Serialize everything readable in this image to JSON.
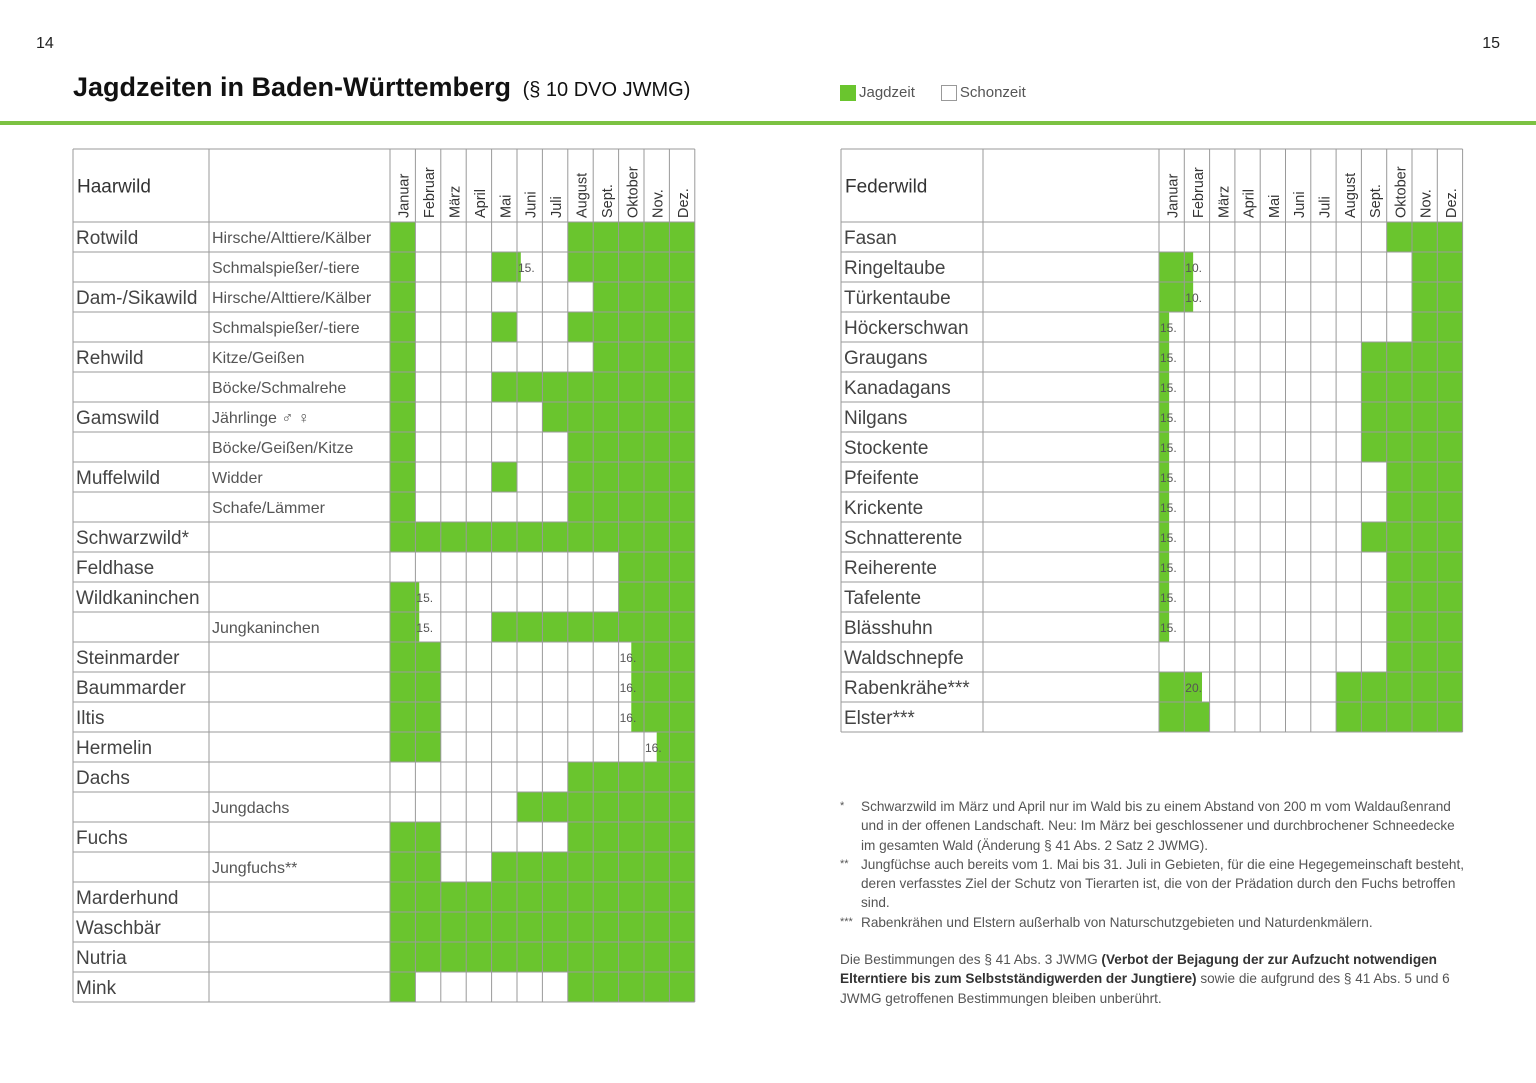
{
  "page": {
    "left_number": "14",
    "right_number": "15",
    "title": "Jagdzeiten in Baden-Württemberg",
    "title_sub": "(§ 10 DVO JWMG)",
    "legend": {
      "jagdzeit": "Jagdzeit",
      "schonzeit": "Schonzeit"
    }
  },
  "colors": {
    "green": "#6ac52e",
    "rule": "#7cc242",
    "grid": "#9a9a9a"
  },
  "months": [
    "Januar",
    "Februar",
    "März",
    "April",
    "Mai",
    "Juni",
    "Juli",
    "August",
    "Sept.",
    "Oktober",
    "Nov.",
    "Dez."
  ],
  "haarwild": {
    "header": "Haarwild",
    "rows": [
      {
        "species": "Rotwild",
        "sub": "Hirsche/Alttiere/Kälber",
        "segs": [
          [
            0,
            1
          ],
          [
            7,
            12
          ]
        ],
        "marks": []
      },
      {
        "species": "",
        "sub": "Schmalspießer/-tiere",
        "segs": [
          [
            0,
            1
          ],
          [
            4,
            5.15
          ],
          [
            7,
            12
          ]
        ],
        "marks": [
          {
            "m": 5,
            "t": "15."
          }
        ]
      },
      {
        "species": "Dam-/Sikawild",
        "sub": "Hirsche/Alttiere/Kälber",
        "segs": [
          [
            0,
            1
          ],
          [
            8,
            12
          ]
        ],
        "marks": []
      },
      {
        "species": "",
        "sub": "Schmalspießer/-tiere",
        "segs": [
          [
            0,
            1
          ],
          [
            4,
            5
          ],
          [
            7,
            12
          ]
        ],
        "marks": []
      },
      {
        "species": "Rehwild",
        "sub": "Kitze/Geißen",
        "segs": [
          [
            0,
            1
          ],
          [
            8,
            12
          ]
        ],
        "marks": []
      },
      {
        "species": "",
        "sub": "Böcke/Schmalrehe",
        "segs": [
          [
            0,
            1
          ],
          [
            4,
            12
          ]
        ],
        "marks": []
      },
      {
        "species": "Gamswild",
        "sub": "Jährlinge ♂ ♀",
        "segs": [
          [
            0,
            1
          ],
          [
            6,
            12
          ]
        ],
        "marks": []
      },
      {
        "species": "",
        "sub": "Böcke/Geißen/Kitze",
        "segs": [
          [
            0,
            1
          ],
          [
            7,
            12
          ]
        ],
        "marks": []
      },
      {
        "species": "Muffelwild",
        "sub": "Widder",
        "segs": [
          [
            0,
            1
          ],
          [
            4,
            5
          ],
          [
            7,
            12
          ]
        ],
        "marks": []
      },
      {
        "species": "",
        "sub": "Schafe/Lämmer",
        "segs": [
          [
            0,
            1
          ],
          [
            7,
            12
          ]
        ],
        "marks": []
      },
      {
        "species": "Schwarzwild*",
        "sub": "",
        "segs": [
          [
            0,
            12
          ]
        ],
        "marks": []
      },
      {
        "species": "Feldhase",
        "sub": "",
        "segs": [
          [
            9,
            12
          ]
        ],
        "marks": []
      },
      {
        "species": "Wildkaninchen",
        "sub": "",
        "segs": [
          [
            0,
            1.15
          ],
          [
            9,
            12
          ]
        ],
        "marks": [
          {
            "m": 1,
            "t": "15."
          }
        ]
      },
      {
        "species": "",
        "sub": "Jungkaninchen",
        "segs": [
          [
            0,
            1.15
          ],
          [
            4,
            12
          ]
        ],
        "marks": [
          {
            "m": 1,
            "t": "15."
          }
        ]
      },
      {
        "species": "Steinmarder",
        "sub": "",
        "segs": [
          [
            0,
            2
          ],
          [
            9.5,
            12
          ]
        ],
        "marks": [
          {
            "m": 9,
            "t": "16."
          }
        ]
      },
      {
        "species": "Baummarder",
        "sub": "",
        "segs": [
          [
            0,
            2
          ],
          [
            9.5,
            12
          ]
        ],
        "marks": [
          {
            "m": 9,
            "t": "16."
          }
        ]
      },
      {
        "species": "Iltis",
        "sub": "",
        "segs": [
          [
            0,
            2
          ],
          [
            9.5,
            12
          ]
        ],
        "marks": [
          {
            "m": 9,
            "t": "16."
          }
        ]
      },
      {
        "species": "Hermelin",
        "sub": "",
        "segs": [
          [
            0,
            2
          ],
          [
            10.5,
            12
          ]
        ],
        "marks": [
          {
            "m": 10,
            "t": "16."
          }
        ]
      },
      {
        "species": "Dachs",
        "sub": "",
        "segs": [
          [
            7,
            12
          ]
        ],
        "marks": []
      },
      {
        "species": "",
        "sub": "Jungdachs",
        "segs": [
          [
            5,
            12
          ]
        ],
        "marks": []
      },
      {
        "species": "Fuchs",
        "sub": "",
        "segs": [
          [
            0,
            2
          ],
          [
            7,
            12
          ]
        ],
        "marks": []
      },
      {
        "species": "",
        "sub": "Jungfuchs**",
        "segs": [
          [
            0,
            2
          ],
          [
            4,
            12
          ]
        ],
        "marks": []
      },
      {
        "species": "Marderhund",
        "sub": "",
        "segs": [
          [
            0,
            12
          ]
        ],
        "marks": []
      },
      {
        "species": "Waschbär",
        "sub": "",
        "segs": [
          [
            0,
            12
          ]
        ],
        "marks": []
      },
      {
        "species": "Nutria",
        "sub": "",
        "segs": [
          [
            0,
            12
          ]
        ],
        "marks": []
      },
      {
        "species": "Mink",
        "sub": "",
        "segs": [
          [
            0,
            1
          ],
          [
            7,
            12
          ]
        ],
        "marks": []
      }
    ]
  },
  "federwild": {
    "header": "Federwild",
    "rows": [
      {
        "species": "Fasan",
        "segs": [
          [
            9,
            12
          ]
        ],
        "marks": []
      },
      {
        "species": "Ringeltaube",
        "segs": [
          [
            0,
            1.35
          ],
          [
            10,
            12
          ]
        ],
        "marks": [
          {
            "m": 1,
            "t": "10."
          }
        ]
      },
      {
        "species": "Türkentaube",
        "segs": [
          [
            0,
            1.35
          ],
          [
            10,
            12
          ]
        ],
        "marks": [
          {
            "m": 1,
            "t": "10."
          }
        ]
      },
      {
        "species": "Höckerschwan",
        "segs": [
          [
            0,
            0.4
          ],
          [
            10,
            12
          ]
        ],
        "marks": [
          {
            "m": 0,
            "t": "15."
          }
        ]
      },
      {
        "species": "Graugans",
        "segs": [
          [
            0,
            0.4
          ],
          [
            8,
            12
          ]
        ],
        "marks": [
          {
            "m": 0,
            "t": "15."
          }
        ]
      },
      {
        "species": "Kanadagans",
        "segs": [
          [
            0,
            0.4
          ],
          [
            8,
            12
          ]
        ],
        "marks": [
          {
            "m": 0,
            "t": "15."
          }
        ]
      },
      {
        "species": "Nilgans",
        "segs": [
          [
            0,
            0.4
          ],
          [
            8,
            12
          ]
        ],
        "marks": [
          {
            "m": 0,
            "t": "15."
          }
        ]
      },
      {
        "species": "Stockente",
        "segs": [
          [
            0,
            0.4
          ],
          [
            8,
            12
          ]
        ],
        "marks": [
          {
            "m": 0,
            "t": "15."
          }
        ]
      },
      {
        "species": "Pfeifente",
        "segs": [
          [
            0,
            0.4
          ],
          [
            9,
            12
          ]
        ],
        "marks": [
          {
            "m": 0,
            "t": "15."
          }
        ]
      },
      {
        "species": "Krickente",
        "segs": [
          [
            0,
            0.4
          ],
          [
            9,
            12
          ]
        ],
        "marks": [
          {
            "m": 0,
            "t": "15."
          }
        ]
      },
      {
        "species": "Schnatterente",
        "segs": [
          [
            0,
            0.4
          ],
          [
            8,
            12
          ]
        ],
        "marks": [
          {
            "m": 0,
            "t": "15."
          }
        ]
      },
      {
        "species": "Reiherente",
        "segs": [
          [
            0,
            0.4
          ],
          [
            9,
            12
          ]
        ],
        "marks": [
          {
            "m": 0,
            "t": "15."
          }
        ]
      },
      {
        "species": "Tafelente",
        "segs": [
          [
            0,
            0.4
          ],
          [
            9,
            12
          ]
        ],
        "marks": [
          {
            "m": 0,
            "t": "15."
          }
        ]
      },
      {
        "species": "Blässhuhn",
        "segs": [
          [
            0,
            0.4
          ],
          [
            9,
            12
          ]
        ],
        "marks": [
          {
            "m": 0,
            "t": "15."
          }
        ]
      },
      {
        "species": "Waldschnepfe",
        "segs": [
          [
            9,
            12
          ]
        ],
        "marks": []
      },
      {
        "species": "Rabenkrähe***",
        "segs": [
          [
            0,
            1.7
          ],
          [
            7,
            12
          ]
        ],
        "marks": [
          {
            "m": 1,
            "t": "20."
          }
        ]
      },
      {
        "species": "Elster***",
        "segs": [
          [
            0,
            2
          ],
          [
            7,
            12
          ]
        ],
        "marks": []
      }
    ]
  },
  "footnotes": [
    {
      "mark": "*",
      "text": "Schwarzwild im März und April nur im Wald bis zu einem Abstand von 200 m vom Waldaußenrand und in der offenen Landschaft. Neu: Im März bei geschlossener und durchbrochener Schneedecke im gesamten Wald (Änderung § 41 Abs. 2 Satz 2 JWMG)."
    },
    {
      "mark": "**",
      "text": "Jungfüchse auch bereits vom 1. Mai bis 31. Juli in Gebieten, für die eine Hegegemeinschaft besteht, deren verfasstes Ziel der Schutz von Tierarten ist, die von der Prädation durch den Fuchs betroffen sind."
    },
    {
      "mark": "***",
      "text": "Rabenkrähen und Elstern außerhalb von Naturschutzgebieten und Naturdenkmälern."
    }
  ],
  "note": {
    "pre": "Die Bestimmungen des § 41 Abs. 3 JWMG ",
    "bold": "(Verbot der Bejagung der zur Aufzucht notwendigen Elterntiere bis zum Selbstständigwerden der Jungtiere)",
    "post": " sowie die aufgrund des § 41 Abs. 5 und 6 JWMG getroffenen Bestimmungen bleiben unberührt."
  }
}
